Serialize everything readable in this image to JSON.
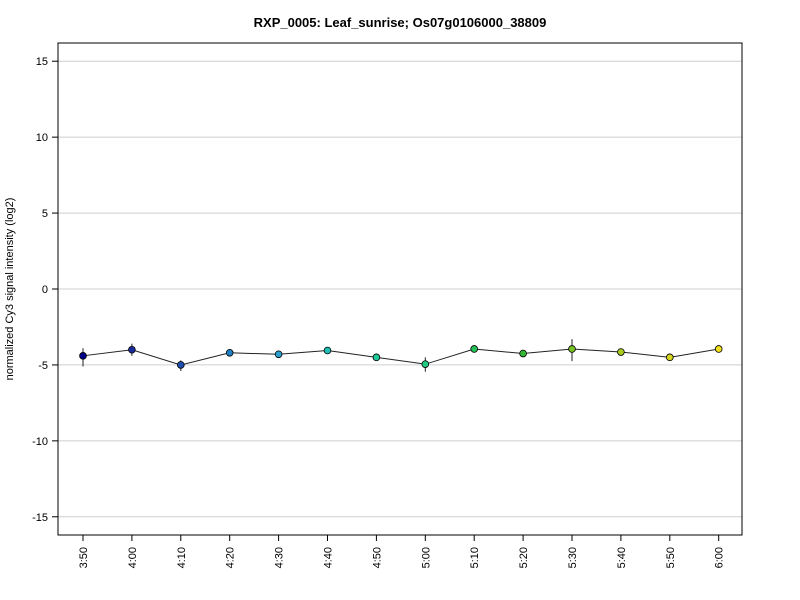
{
  "chart_data": {
    "type": "line",
    "title": "RXP_0005: Leaf_sunrise; Os07g0106000_38809",
    "xlabel": "",
    "ylabel": "normalized Cy3 signal intensity (log2)",
    "ylim": [
      -16.2,
      16.2
    ],
    "yticks": [
      -15,
      -10,
      -5,
      0,
      5,
      10,
      15
    ],
    "grid": true,
    "categories": [
      "3:50",
      "4:00",
      "4:10",
      "4:20",
      "4:30",
      "4:40",
      "4:50",
      "5:00",
      "5:10",
      "5:20",
      "5:30",
      "5:40",
      "5:50",
      "6:00"
    ],
    "series": [
      {
        "values": [
          -4.4,
          -4.0,
          -5.0,
          -4.2,
          -4.3,
          -4.05,
          -4.5,
          -4.95,
          -3.95,
          -4.25,
          -3.95,
          -4.15,
          -4.5,
          -3.95
        ],
        "err_low": [
          -5.1,
          -4.4,
          -5.4,
          -4.3,
          -4.35,
          -4.15,
          -4.55,
          -5.45,
          -4.05,
          -4.4,
          -4.75,
          -4.25,
          -4.7,
          -4.05
        ],
        "err_high": [
          -3.9,
          -3.6,
          -4.7,
          -4.05,
          -4.2,
          -3.95,
          -4.4,
          -4.5,
          -3.8,
          -4.05,
          -3.3,
          -4.0,
          -4.25,
          -3.8
        ],
        "colors": [
          "#00008b",
          "#1a2a9a",
          "#1d4fb0",
          "#1f7fc4",
          "#2b9fcf",
          "#1fbfb5",
          "#20c99a",
          "#22c980",
          "#22c055",
          "#34b834",
          "#77c224",
          "#a9cc1e",
          "#d5d51e",
          "#f2e01e"
        ]
      }
    ]
  }
}
